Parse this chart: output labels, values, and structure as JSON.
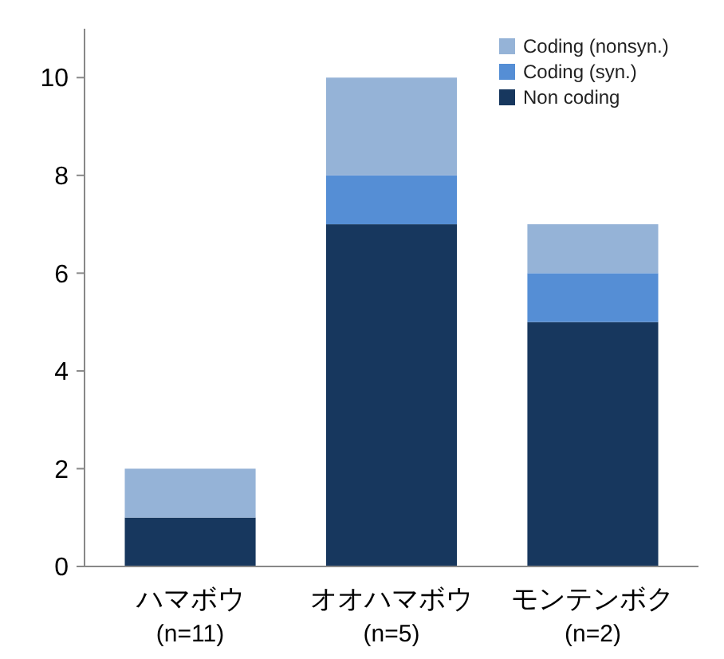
{
  "chart_data": {
    "type": "bar",
    "stacked": true,
    "categories": [
      "ハマボウ\n(n=11)",
      "オオハマボウ\n(n=5)",
      "モンテンボク\n(n=2)"
    ],
    "series": [
      {
        "name": "Non coding",
        "color": "#17375e",
        "values": [
          1,
          7,
          5
        ]
      },
      {
        "name": "Coding (syn.)",
        "color": "#558ed5",
        "values": [
          0,
          1,
          1
        ]
      },
      {
        "name": "Coding (nonsyn.)",
        "color": "#95b3d7",
        "values": [
          1,
          2,
          1
        ]
      }
    ],
    "ylim": [
      0,
      11
    ],
    "yticks": [
      0,
      2,
      4,
      6,
      8,
      10
    ],
    "grid": false,
    "legend": "top right"
  }
}
